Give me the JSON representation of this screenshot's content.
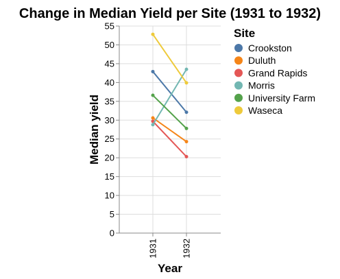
{
  "chart_data": {
    "type": "line",
    "title": "Change in Median Yield per Site (1931 to 1932)",
    "xlabel": "Year",
    "ylabel": "Median yield",
    "categories": [
      "1931",
      "1932"
    ],
    "ylim": [
      0,
      55
    ],
    "yticks": [
      0,
      5,
      10,
      15,
      20,
      25,
      30,
      35,
      40,
      45,
      50,
      55
    ],
    "grid": true,
    "legend": {
      "title": "Site",
      "placement": "right"
    },
    "series": [
      {
        "name": "Crookston",
        "color": "#4c78a8",
        "values": [
          42.9,
          32.1
        ]
      },
      {
        "name": "Duluth",
        "color": "#f58518",
        "values": [
          30.6,
          24.3
        ]
      },
      {
        "name": "Grand Rapids",
        "color": "#e45756",
        "values": [
          29.7,
          20.3
        ]
      },
      {
        "name": "Morris",
        "color": "#72b7b2",
        "values": [
          28.8,
          43.5
        ]
      },
      {
        "name": "University Farm",
        "color": "#54a24b",
        "values": [
          36.6,
          27.8
        ]
      },
      {
        "name": "Waseca",
        "color": "#eeca3b",
        "values": [
          52.8,
          39.9
        ]
      }
    ]
  }
}
